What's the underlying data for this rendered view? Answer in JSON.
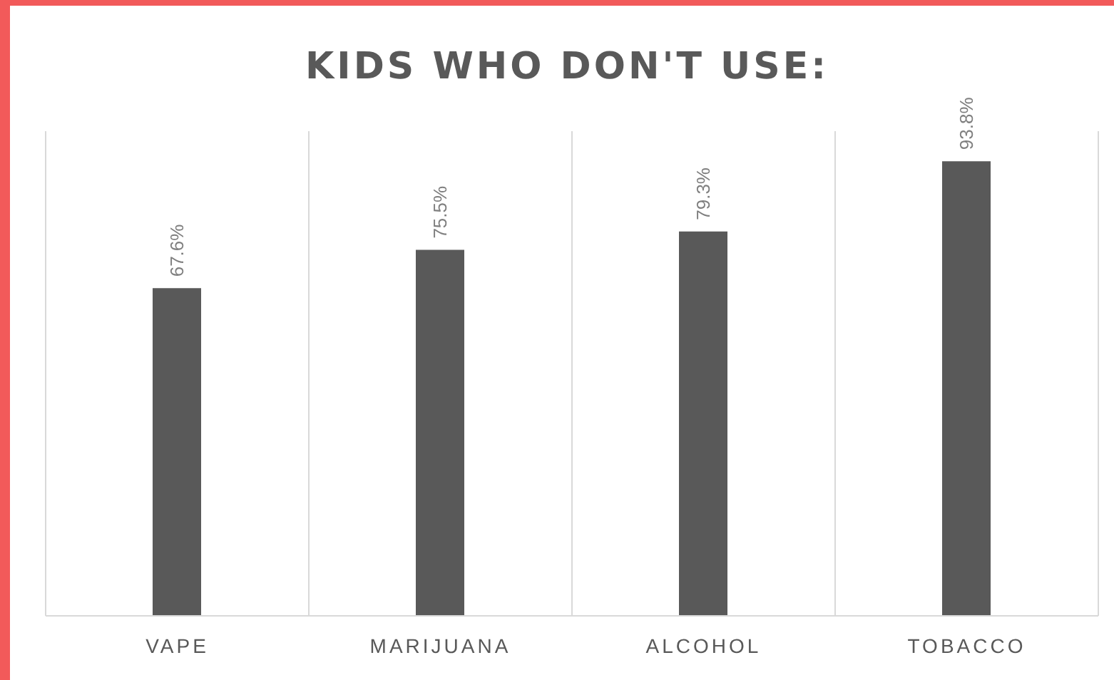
{
  "chart_data": {
    "type": "bar",
    "title": "KIDS WHO DON'T USE:",
    "categories": [
      "VAPE",
      "MARIJUANA",
      "ALCOHOL",
      "TOBACCO"
    ],
    "values": [
      67.6,
      75.5,
      79.3,
      93.8
    ],
    "value_labels": [
      "67.6%",
      "75.5%",
      "79.3%",
      "93.8%"
    ],
    "color": "#595959",
    "ylim": [
      0,
      100
    ],
    "grid": "x"
  }
}
